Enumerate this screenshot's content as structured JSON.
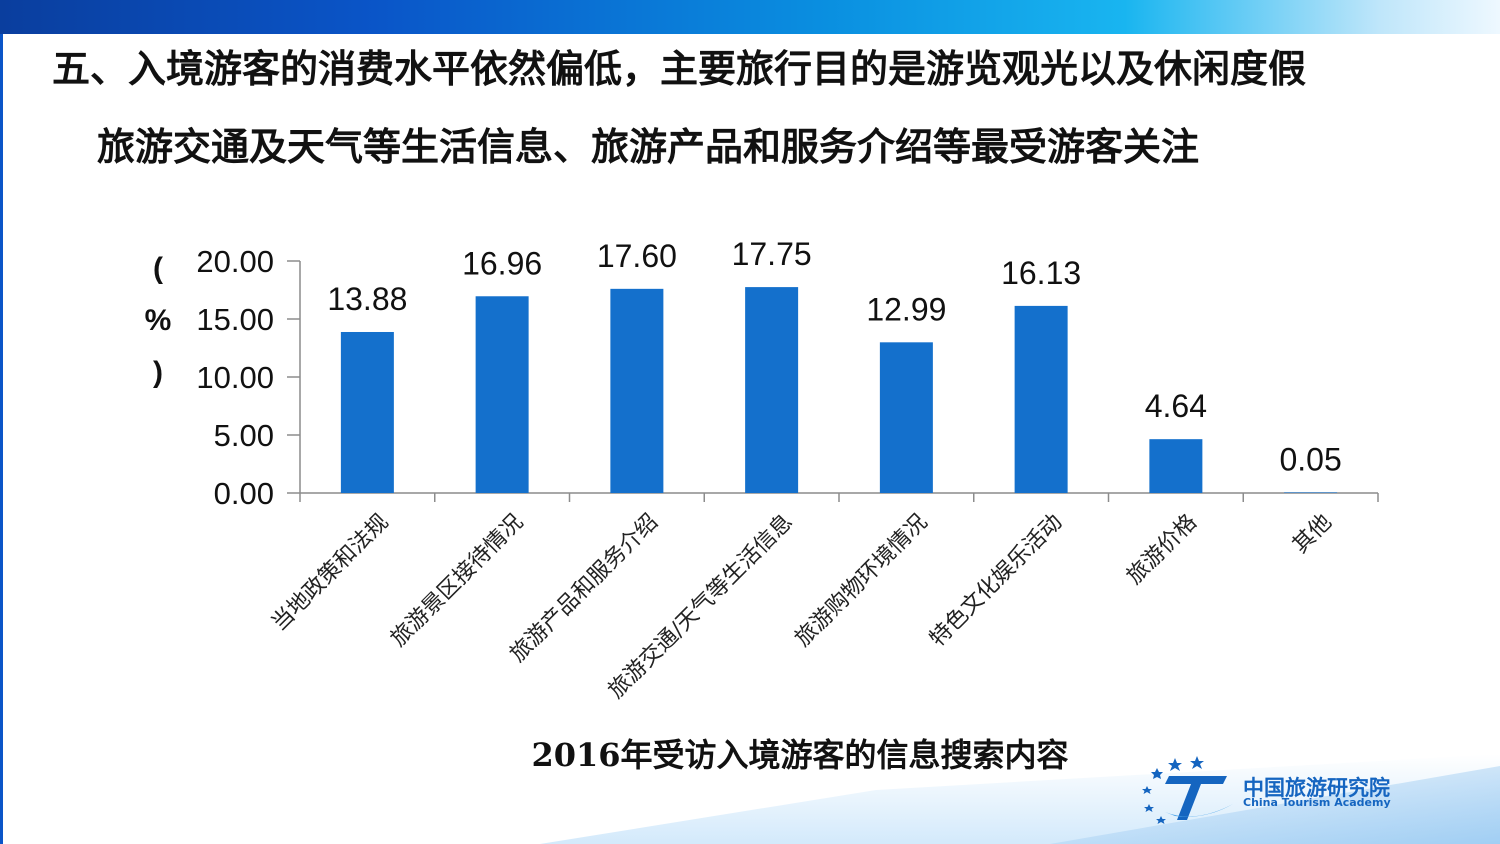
{
  "header": {
    "headline": "五、入境游客的消费水平依然偏低，主要旅行目的是游览观光以及休闲度假",
    "subheadline": "旅游交通及天气等生活信息、旅游产品和服务介绍等最受游客关注"
  },
  "chart_data": {
    "type": "bar",
    "title": "2016年受访入境游客的信息搜索内容",
    "ylabel": "（%）",
    "ylabel_chars": [
      "(",
      "%",
      ")"
    ],
    "ylim": [
      0,
      20
    ],
    "yticks": [
      "0.00",
      "5.00",
      "10.00",
      "15.00",
      "20.00"
    ],
    "categories": [
      "当地政策和法规",
      "旅游景区接待情况",
      "旅游产品和服务介绍",
      "旅游交通/天气等生活信息",
      "旅游购物环境情况",
      "特色文化娱乐活动",
      "旅游价格",
      "其他"
    ],
    "values": [
      13.88,
      16.96,
      17.6,
      17.75,
      12.99,
      16.13,
      4.64,
      0.05
    ],
    "value_labels": [
      "13.88",
      "16.96",
      "17.60",
      "17.75",
      "12.99",
      "16.13",
      "4.64",
      "0.05"
    ],
    "bar_color": "#1470cc",
    "grid": false,
    "legend": "none"
  },
  "logo": {
    "name_cn": "中国旅游研究院",
    "name_en": "China Tourism Academy",
    "color": "#1565c0"
  }
}
